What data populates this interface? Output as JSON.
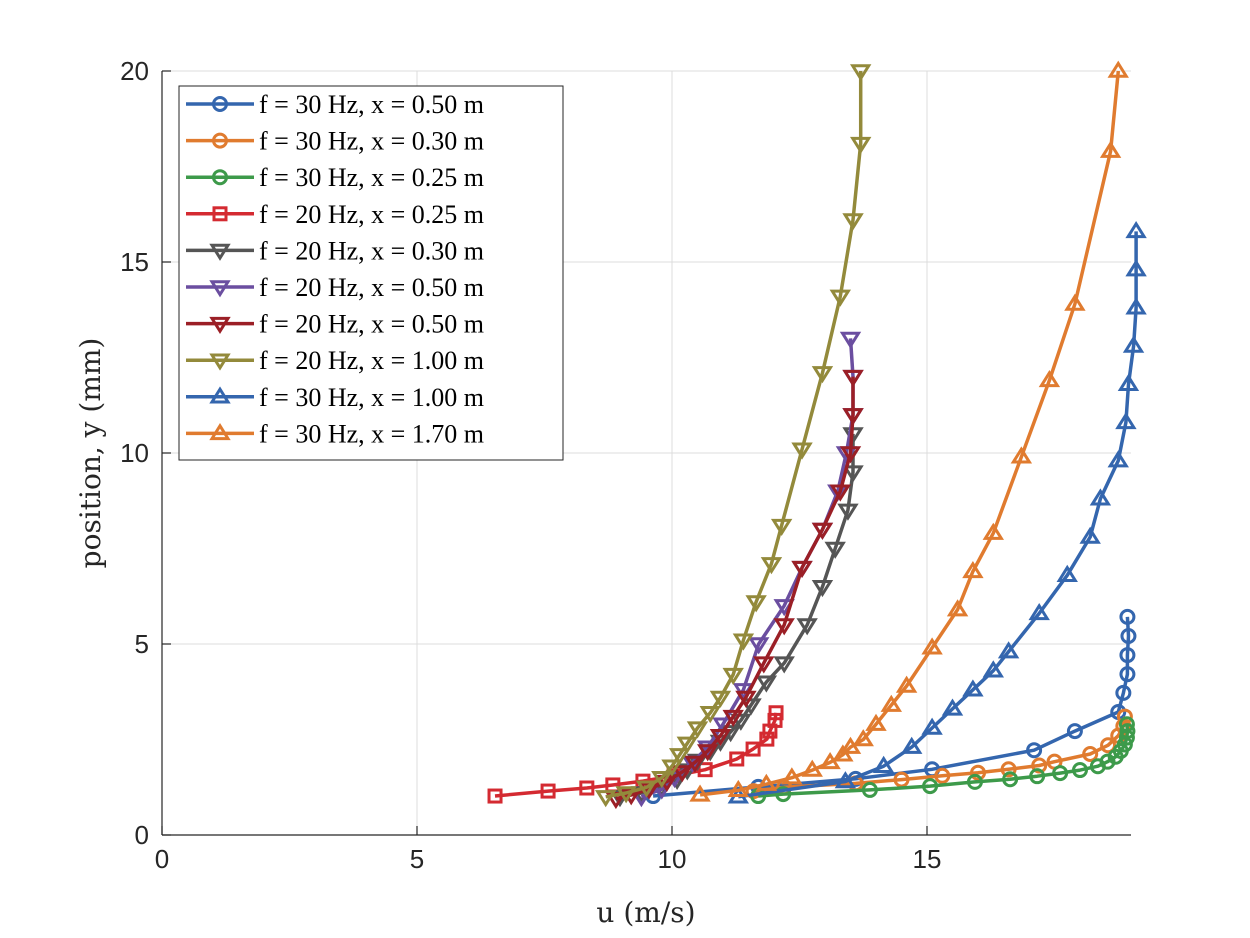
{
  "chart_data": {
    "type": "line",
    "title": "",
    "xlabel": "u (m/s)",
    "ylabel": "position, y (mm)",
    "xlim": [
      0,
      19
    ],
    "ylim": [
      0,
      20
    ],
    "xticks": [
      0,
      5,
      10,
      15
    ],
    "yticks": [
      0,
      5,
      10,
      15,
      20
    ],
    "grid": true,
    "legend_position": "top-left",
    "series": [
      {
        "name": "f = 30 Hz, x = 0.50 m",
        "color": "#3466ae",
        "marker": "circle",
        "points": [
          [
            9.63,
            1.02
          ],
          [
            11.69,
            1.26
          ],
          [
            13.6,
            1.47
          ],
          [
            15.1,
            1.72
          ],
          [
            17.1,
            2.22
          ],
          [
            17.9,
            2.72
          ],
          [
            18.75,
            3.22
          ],
          [
            18.85,
            3.72
          ],
          [
            18.93,
            4.21
          ],
          [
            18.93,
            4.71
          ],
          [
            18.95,
            5.21
          ],
          [
            18.93,
            5.71
          ]
        ]
      },
      {
        "name": "f = 30 Hz, x = 0.30 m",
        "color": "#e07b2f",
        "marker": "circle",
        "points": [
          [
            11.6,
            1.15
          ],
          [
            12.2,
            1.25
          ],
          [
            13.6,
            1.35
          ],
          [
            14.5,
            1.45
          ],
          [
            15.3,
            1.55
          ],
          [
            16.0,
            1.63
          ],
          [
            16.6,
            1.72
          ],
          [
            17.2,
            1.82
          ],
          [
            17.5,
            1.92
          ],
          [
            18.2,
            2.12
          ],
          [
            18.55,
            2.35
          ],
          [
            18.75,
            2.6
          ],
          [
            18.85,
            2.85
          ],
          [
            18.88,
            3.1
          ]
        ]
      },
      {
        "name": "f = 30 Hz, x = 0.25 m",
        "color": "#3d9a4a",
        "marker": "circle",
        "points": [
          [
            11.69,
            1.02
          ],
          [
            12.18,
            1.07
          ],
          [
            13.88,
            1.18
          ],
          [
            15.06,
            1.28
          ],
          [
            15.94,
            1.39
          ],
          [
            16.63,
            1.46
          ],
          [
            17.16,
            1.54
          ],
          [
            17.61,
            1.62
          ],
          [
            18.0,
            1.7
          ],
          [
            18.35,
            1.8
          ],
          [
            18.54,
            1.92
          ],
          [
            18.7,
            2.05
          ],
          [
            18.8,
            2.2
          ],
          [
            18.88,
            2.37
          ],
          [
            18.92,
            2.55
          ],
          [
            18.93,
            2.72
          ],
          [
            18.92,
            2.9
          ]
        ]
      },
      {
        "name": "f = 20 Hz, x = 0.25 m",
        "color": "#d42a31",
        "marker": "square",
        "points": [
          [
            6.53,
            1.02
          ],
          [
            7.57,
            1.15
          ],
          [
            8.33,
            1.23
          ],
          [
            8.84,
            1.31
          ],
          [
            9.43,
            1.41
          ],
          [
            10.04,
            1.55
          ],
          [
            10.65,
            1.71
          ],
          [
            11.27,
            1.99
          ],
          [
            11.59,
            2.25
          ],
          [
            11.86,
            2.51
          ],
          [
            11.92,
            2.72
          ],
          [
            12.02,
            3.0
          ],
          [
            12.04,
            3.2
          ]
        ]
      },
      {
        "name": "f = 20 Hz, x = 0.30 m",
        "color": "#555555",
        "marker": "triangle-down",
        "points": [
          [
            8.98,
            1.0
          ],
          [
            9.4,
            1.1
          ],
          [
            9.8,
            1.25
          ],
          [
            10.1,
            1.45
          ],
          [
            10.3,
            1.7
          ],
          [
            10.5,
            1.95
          ],
          [
            10.75,
            2.2
          ],
          [
            10.95,
            2.45
          ],
          [
            11.15,
            2.7
          ],
          [
            11.35,
            3.0
          ],
          [
            11.55,
            3.4
          ],
          [
            11.85,
            4.0
          ],
          [
            12.2,
            4.5
          ],
          [
            12.65,
            5.5
          ],
          [
            12.95,
            6.5
          ],
          [
            13.2,
            7.5
          ],
          [
            13.45,
            8.5
          ],
          [
            13.55,
            9.5
          ],
          [
            13.55,
            10.5
          ]
        ]
      },
      {
        "name": "f = 20 Hz, x = 0.50 m",
        "color": "#6b4ea0",
        "marker": "triangle-down",
        "points": [
          [
            9.4,
            1.0
          ],
          [
            9.8,
            1.2
          ],
          [
            10.05,
            1.5
          ],
          [
            10.4,
            1.9
          ],
          [
            10.7,
            2.3
          ],
          [
            11.0,
            2.9
          ],
          [
            11.4,
            3.8
          ],
          [
            11.7,
            5.0
          ],
          [
            12.2,
            6.0
          ],
          [
            12.55,
            7.0
          ],
          [
            12.95,
            8.0
          ],
          [
            13.25,
            9.0
          ],
          [
            13.42,
            10.0
          ],
          [
            13.55,
            11.0
          ],
          [
            13.55,
            12.0
          ],
          [
            13.5,
            13.0
          ]
        ]
      },
      {
        "name": "f = 20 Hz, x = 0.50 m",
        "color": "#9b1f26",
        "marker": "triangle-down",
        "points": [
          [
            8.9,
            0.95
          ],
          [
            9.2,
            1.05
          ],
          [
            9.55,
            1.2
          ],
          [
            9.9,
            1.4
          ],
          [
            10.2,
            1.65
          ],
          [
            10.45,
            1.9
          ],
          [
            10.7,
            2.2
          ],
          [
            10.95,
            2.6
          ],
          [
            11.2,
            3.1
          ],
          [
            11.45,
            3.6
          ],
          [
            11.8,
            4.5
          ],
          [
            12.2,
            5.5
          ],
          [
            12.55,
            7.0
          ],
          [
            12.95,
            8.0
          ],
          [
            13.3,
            9.0
          ],
          [
            13.5,
            10.0
          ],
          [
            13.55,
            11.0
          ],
          [
            13.55,
            12.0
          ]
        ]
      },
      {
        "name": "f = 20 Hz, x = 1.00 m",
        "color": "#938a3b",
        "marker": "triangle-down",
        "points": [
          [
            8.7,
            1.0
          ],
          [
            9.1,
            1.1
          ],
          [
            9.5,
            1.25
          ],
          [
            9.8,
            1.5
          ],
          [
            10.0,
            1.8
          ],
          [
            10.15,
            2.1
          ],
          [
            10.3,
            2.4
          ],
          [
            10.5,
            2.8
          ],
          [
            10.75,
            3.2
          ],
          [
            10.95,
            3.6
          ],
          [
            11.2,
            4.2
          ],
          [
            11.4,
            5.1
          ],
          [
            11.65,
            6.1
          ],
          [
            11.95,
            7.1
          ],
          [
            12.15,
            8.1
          ],
          [
            12.55,
            10.1
          ],
          [
            12.95,
            12.1
          ],
          [
            13.3,
            14.1
          ],
          [
            13.55,
            16.1
          ],
          [
            13.7,
            18.1
          ],
          [
            13.7,
            20.0
          ]
        ]
      },
      {
        "name": "f = 30 Hz, x = 1.00 m",
        "color": "#3466ae",
        "marker": "triangle-up",
        "points": [
          [
            11.3,
            1.0
          ],
          [
            13.4,
            1.4
          ],
          [
            14.15,
            1.8
          ],
          [
            14.7,
            2.3
          ],
          [
            15.1,
            2.8
          ],
          [
            15.5,
            3.3
          ],
          [
            15.9,
            3.8
          ],
          [
            16.3,
            4.3
          ],
          [
            16.6,
            4.8
          ],
          [
            17.2,
            5.8
          ],
          [
            17.75,
            6.8
          ],
          [
            18.2,
            7.8
          ],
          [
            18.4,
            8.8
          ],
          [
            18.75,
            9.8
          ],
          [
            18.9,
            10.8
          ],
          [
            18.95,
            11.8
          ],
          [
            19.05,
            12.8
          ],
          [
            19.1,
            13.8
          ],
          [
            19.1,
            14.8
          ],
          [
            19.1,
            15.8
          ]
        ]
      },
      {
        "name": "f = 30 Hz, x = 1.70 m",
        "color": "#e07b2f",
        "marker": "triangle-up",
        "points": [
          [
            10.55,
            1.05
          ],
          [
            11.3,
            1.17
          ],
          [
            11.85,
            1.33
          ],
          [
            12.35,
            1.5
          ],
          [
            12.75,
            1.7
          ],
          [
            13.1,
            1.9
          ],
          [
            13.35,
            2.1
          ],
          [
            13.5,
            2.3
          ],
          [
            13.75,
            2.5
          ],
          [
            14.0,
            2.9
          ],
          [
            14.3,
            3.4
          ],
          [
            14.6,
            3.9
          ],
          [
            15.1,
            4.9
          ],
          [
            15.6,
            5.9
          ],
          [
            15.9,
            6.9
          ],
          [
            16.3,
            7.9
          ],
          [
            16.85,
            9.9
          ],
          [
            17.4,
            11.9
          ],
          [
            17.9,
            13.9
          ],
          [
            18.6,
            17.9
          ],
          [
            18.75,
            20.0
          ]
        ]
      }
    ]
  }
}
